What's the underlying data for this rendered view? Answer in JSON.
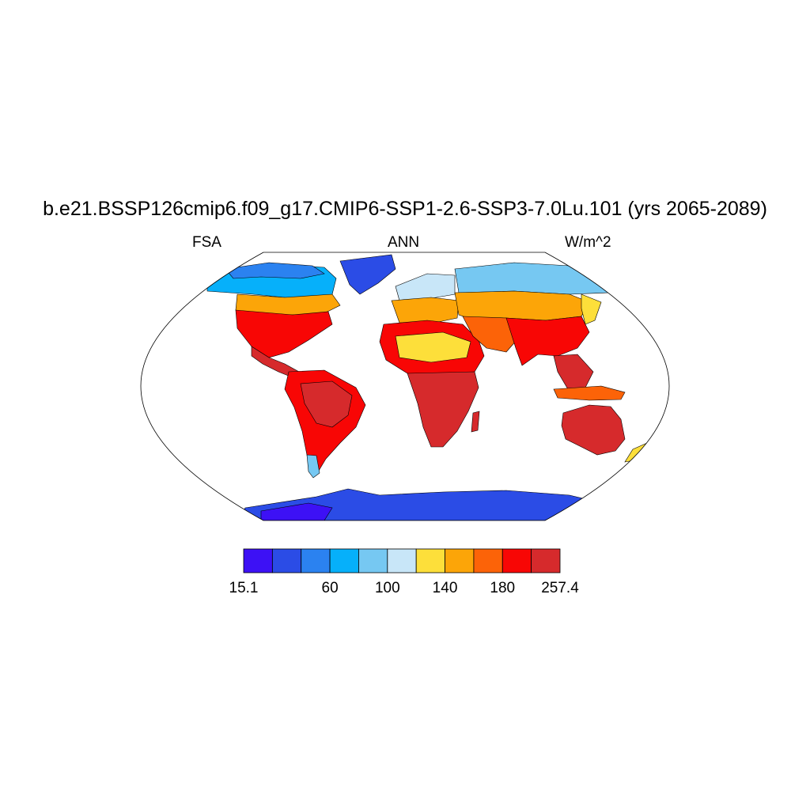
{
  "title": "b.e21.BSSP126cmip6.f09_g17.CMIP6-SSP1-2.6-SSP3-7.0Lu.101 (yrs 2065-2089)",
  "subtitle_left": "FSA",
  "subtitle_center": "ANN",
  "subtitle_right": "W/m^2",
  "colorbar": {
    "colors": [
      "#3d11f5",
      "#2b4ce6",
      "#2b82f0",
      "#06b0fa",
      "#76c8f2",
      "#c8e6f8",
      "#fddf3a",
      "#fca508",
      "#fc6308",
      "#f80605",
      "#d62a2c"
    ],
    "tick_labels": [
      "15.1",
      "60",
      "100",
      "140",
      "180",
      "257.4"
    ],
    "tick_values": [
      15.1,
      60,
      100,
      140,
      180,
      257.4
    ]
  },
  "palette": {
    "polar": "#2b4ce6",
    "polar_deep": "#3d11f5",
    "subpolar": "#2b82f0",
    "cold": "#06b0fa",
    "cool": "#76c8f2",
    "mild": "#c8e6f8",
    "warm": "#fddf3a",
    "warmer": "#fca508",
    "hot": "#fc6308",
    "hotter": "#f80605",
    "hottest": "#d62a2c",
    "outline": "#000000"
  }
}
